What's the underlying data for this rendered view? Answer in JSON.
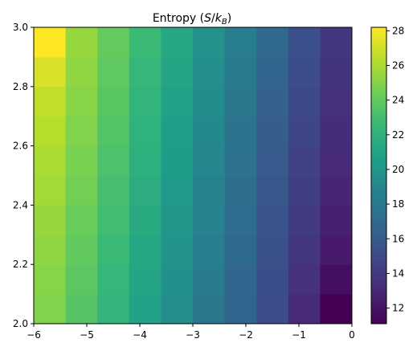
{
  "chart_data": {
    "type": "heatmap",
    "title_prefix": "Entropy (",
    "title_math_S": "S",
    "title_math_slash": "/",
    "title_math_k": "k",
    "title_math_sub": "B",
    "title_suffix": ")",
    "x_edges": [
      -6.0,
      -5.4,
      -4.8,
      -4.2,
      -3.6,
      -3.0,
      -2.4,
      -1.8,
      -1.2,
      -0.6,
      0.0
    ],
    "y_edges": [
      2.0,
      2.1,
      2.2,
      2.3,
      2.4,
      2.5,
      2.6,
      2.7,
      2.8,
      2.9,
      3.0
    ],
    "xlim": [
      -6,
      0
    ],
    "ylim": [
      2.0,
      3.0
    ],
    "x_ticks": [
      -6,
      -5,
      -4,
      -3,
      -2,
      -1,
      0
    ],
    "x_tick_labels": [
      "−6",
      "−5",
      "−4",
      "−3",
      "−2",
      "−1",
      "0"
    ],
    "y_ticks": [
      2.0,
      2.2,
      2.4,
      2.6,
      2.8,
      3.0
    ],
    "y_tick_labels": [
      "2.0",
      "2.2",
      "2.4",
      "2.6",
      "2.8",
      "3.0"
    ],
    "colorbar_range": [
      11.1,
      28.2
    ],
    "colorbar_ticks": [
      12,
      14,
      16,
      18,
      20,
      22,
      24,
      26,
      28
    ],
    "colorbar_tick_labels": [
      "12",
      "14",
      "16",
      "18",
      "20",
      "22",
      "24",
      "26",
      "28"
    ],
    "colormap": "viridis",
    "values_note_rows": "rows ordered from y=2.0 (bottom) to y=3.0 (top); columns ordered x=-6 to x=0",
    "values": [
      [
        24.9,
        23.6,
        22.3,
        20.9,
        19.5,
        18.0,
        16.6,
        15.1,
        13.1,
        11.1
      ],
      [
        25.1,
        23.8,
        22.5,
        21.1,
        19.7,
        18.2,
        16.7,
        15.2,
        13.5,
        11.8
      ],
      [
        25.3,
        24.0,
        22.7,
        21.3,
        19.9,
        18.4,
        16.9,
        15.4,
        13.8,
        12.3
      ],
      [
        25.5,
        24.2,
        22.9,
        21.5,
        20.1,
        18.6,
        17.1,
        15.6,
        14.1,
        12.6
      ],
      [
        25.8,
        24.5,
        23.1,
        21.7,
        20.3,
        18.8,
        17.3,
        15.8,
        14.3,
        12.9
      ],
      [
        26.0,
        24.7,
        23.3,
        21.9,
        20.5,
        19.0,
        17.5,
        16.0,
        14.5,
        13.1
      ],
      [
        26.3,
        24.9,
        23.5,
        22.1,
        20.7,
        19.2,
        17.7,
        16.2,
        14.7,
        13.3
      ],
      [
        26.6,
        25.1,
        23.7,
        22.3,
        20.9,
        19.4,
        17.9,
        16.4,
        14.9,
        13.5
      ],
      [
        27.2,
        25.3,
        23.9,
        22.5,
        21.1,
        19.6,
        18.1,
        16.6,
        15.1,
        13.7
      ],
      [
        28.2,
        25.5,
        24.1,
        22.7,
        21.3,
        19.8,
        18.3,
        16.8,
        15.3,
        13.9
      ]
    ]
  }
}
